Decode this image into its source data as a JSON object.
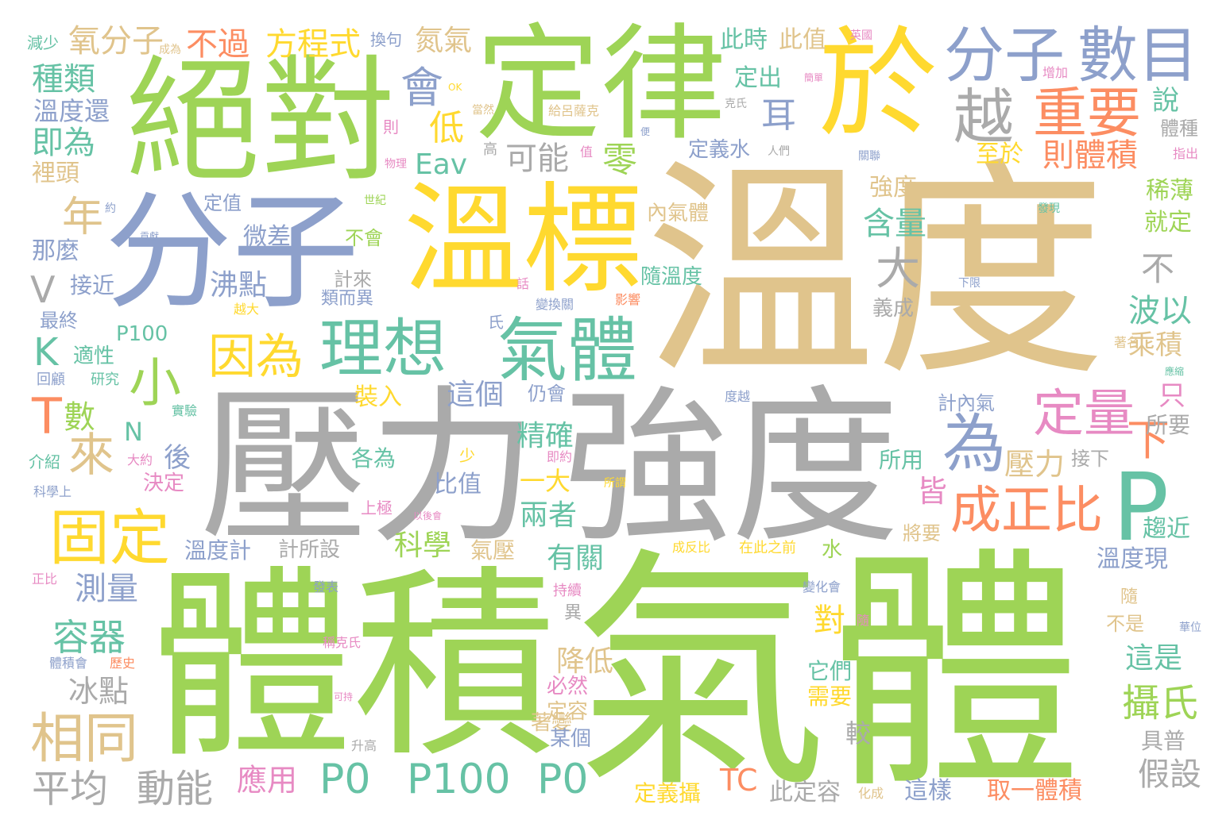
{
  "palette": {
    "green": "#9ed456",
    "tan": "#e0c48c",
    "gray": "#aaaaaa",
    "blue": "#8da0cb",
    "yellow": "#ffd92f",
    "teal": "#66c2a5",
    "orange": "#fc8d62",
    "pink": "#e78ac3"
  },
  "words": [
    {
      "text": "溫度",
      "color": "tan"
    },
    {
      "text": "氣體",
      "color": "green"
    },
    {
      "text": "體積",
      "color": "green"
    },
    {
      "text": "壓力",
      "color": "gray"
    },
    {
      "text": "強度",
      "color": "gray"
    },
    {
      "text": "絕對",
      "color": "green"
    },
    {
      "text": "定律",
      "color": "green"
    },
    {
      "text": "分子",
      "color": "blue"
    },
    {
      "text": "於",
      "color": "yellow"
    },
    {
      "text": "溫標",
      "color": "yellow"
    },
    {
      "text": "P",
      "color": "teal"
    },
    {
      "text": "分子",
      "color": "blue"
    },
    {
      "text": "數目",
      "color": "blue"
    },
    {
      "text": "理想",
      "color": "teal"
    },
    {
      "text": "氣體",
      "color": "teal"
    },
    {
      "text": "重要",
      "color": "orange"
    },
    {
      "text": "越",
      "color": "gray"
    },
    {
      "text": "因為",
      "color": "yellow"
    },
    {
      "text": "小",
      "color": "green"
    },
    {
      "text": "成正比",
      "color": "orange"
    },
    {
      "text": "定量",
      "color": "pink"
    },
    {
      "text": "為",
      "color": "blue"
    },
    {
      "text": "固定",
      "color": "yellow"
    },
    {
      "text": "相同",
      "color": "tan"
    },
    {
      "text": "P0",
      "color": "teal"
    },
    {
      "text": "P100",
      "color": "teal"
    },
    {
      "text": "P0",
      "color": "teal"
    },
    {
      "text": "平均",
      "color": "gray"
    },
    {
      "text": "動能",
      "color": "gray"
    },
    {
      "text": "方程式",
      "color": "yellow"
    },
    {
      "text": "氧分子",
      "color": "tan"
    },
    {
      "text": "不過",
      "color": "orange"
    },
    {
      "text": "氮氣",
      "color": "tan"
    },
    {
      "text": "會",
      "color": "blue"
    },
    {
      "text": "耳",
      "color": "blue"
    },
    {
      "text": "低",
      "color": "yellow"
    },
    {
      "text": "則體積",
      "color": "orange"
    },
    {
      "text": "可能",
      "color": "gray"
    },
    {
      "text": "零",
      "color": "green"
    },
    {
      "text": "Eav",
      "color": "teal"
    },
    {
      "text": "種類",
      "color": "teal"
    },
    {
      "text": "溫度還",
      "color": "blue"
    },
    {
      "text": "即為",
      "color": "teal"
    },
    {
      "text": "裡頭",
      "color": "tan"
    },
    {
      "text": "年",
      "color": "tan"
    },
    {
      "text": "來",
      "color": "tan"
    },
    {
      "text": "T",
      "color": "orange"
    },
    {
      "text": "數",
      "color": "green"
    },
    {
      "text": "K",
      "color": "teal"
    },
    {
      "text": "V",
      "color": "gray"
    },
    {
      "text": "容器",
      "color": "teal"
    },
    {
      "text": "測量",
      "color": "blue"
    },
    {
      "text": "冰點",
      "color": "gray"
    },
    {
      "text": "溫度計",
      "color": "blue"
    },
    {
      "text": "沸點",
      "color": "blue"
    },
    {
      "text": "微差",
      "color": "blue"
    },
    {
      "text": "接近",
      "color": "blue"
    },
    {
      "text": "那麼",
      "color": "blue"
    },
    {
      "text": "最終",
      "color": "blue"
    },
    {
      "text": "P100",
      "color": "teal"
    },
    {
      "text": "適性",
      "color": "teal"
    },
    {
      "text": "裝入",
      "color": "yellow"
    },
    {
      "text": "這個",
      "color": "blue"
    },
    {
      "text": "精確",
      "color": "teal"
    },
    {
      "text": "兩者",
      "color": "teal"
    },
    {
      "text": "一大",
      "color": "yellow"
    },
    {
      "text": "科學",
      "color": "green"
    },
    {
      "text": "氣壓",
      "color": "tan"
    },
    {
      "text": "有關",
      "color": "teal"
    },
    {
      "text": "降低",
      "color": "tan"
    },
    {
      "text": "必然",
      "color": "pink"
    },
    {
      "text": "定容",
      "color": "tan"
    },
    {
      "text": "著變",
      "color": "tan"
    },
    {
      "text": "某個",
      "color": "blue"
    },
    {
      "text": "應用",
      "color": "pink"
    },
    {
      "text": "TC",
      "color": "orange"
    },
    {
      "text": "此定容",
      "color": "gray"
    },
    {
      "text": "定義攝",
      "color": "yellow"
    },
    {
      "text": "這樣",
      "color": "blue"
    },
    {
      "text": "取一體積",
      "color": "orange"
    },
    {
      "text": "假設",
      "color": "gray"
    },
    {
      "text": "具普",
      "color": "gray"
    },
    {
      "text": "攝氏",
      "color": "green"
    },
    {
      "text": "這是",
      "color": "teal"
    },
    {
      "text": "溫度現",
      "color": "blue"
    },
    {
      "text": "趨近",
      "color": "teal"
    },
    {
      "text": "下",
      "color": "orange"
    },
    {
      "text": "壓力",
      "color": "tan"
    },
    {
      "text": "皆",
      "color": "pink"
    },
    {
      "text": "對",
      "color": "yellow"
    },
    {
      "text": "所用",
      "color": "teal"
    },
    {
      "text": "接下",
      "color": "gray"
    },
    {
      "text": "所要",
      "color": "gray"
    },
    {
      "text": "只",
      "color": "pink"
    },
    {
      "text": "乘積",
      "color": "tan"
    },
    {
      "text": "波以",
      "color": "teal"
    },
    {
      "text": "不",
      "color": "gray"
    },
    {
      "text": "大",
      "color": "gray"
    },
    {
      "text": "含量",
      "color": "teal"
    },
    {
      "text": "強度",
      "color": "tan"
    },
    {
      "text": "就定",
      "color": "green"
    },
    {
      "text": "稀薄",
      "color": "green"
    },
    {
      "text": "至於",
      "color": "yellow"
    },
    {
      "text": "說",
      "color": "teal"
    },
    {
      "text": "體種",
      "color": "gray"
    },
    {
      "text": "此時",
      "color": "teal"
    },
    {
      "text": "此值",
      "color": "tan"
    },
    {
      "text": "定出",
      "color": "teal"
    },
    {
      "text": "定義水",
      "color": "blue"
    },
    {
      "text": "內氣體",
      "color": "tan"
    },
    {
      "text": "隨溫度",
      "color": "teal"
    },
    {
      "text": "計內氣",
      "color": "blue"
    },
    {
      "text": "義成",
      "color": "gray"
    },
    {
      "text": "水",
      "color": "green"
    },
    {
      "text": "計所設",
      "color": "gray"
    },
    {
      "text": "後",
      "color": "blue"
    },
    {
      "text": "決定",
      "color": "pink"
    },
    {
      "text": "比值",
      "color": "blue"
    },
    {
      "text": "各為",
      "color": "teal"
    },
    {
      "text": "仍會",
      "color": "blue"
    },
    {
      "text": "定值",
      "color": "blue"
    },
    {
      "text": "不會",
      "color": "green"
    },
    {
      "text": "計來",
      "color": "gray"
    },
    {
      "text": "類而異",
      "color": "blue"
    },
    {
      "text": "N",
      "color": "teal"
    },
    {
      "text": "介紹",
      "color": "teal"
    },
    {
      "text": "科學上",
      "color": "blue"
    },
    {
      "text": "正比",
      "color": "pink"
    },
    {
      "text": "體積會",
      "color": "blue"
    },
    {
      "text": "歷史",
      "color": "orange"
    },
    {
      "text": "回顧",
      "color": "blue"
    },
    {
      "text": "研究",
      "color": "teal"
    },
    {
      "text": "實驗",
      "color": "teal"
    },
    {
      "text": "換句",
      "color": "blue"
    },
    {
      "text": "減少",
      "color": "teal"
    },
    {
      "text": "成為",
      "color": "tan"
    },
    {
      "text": "英國",
      "color": "pink"
    },
    {
      "text": "增加",
      "color": "pink"
    },
    {
      "text": "克氏",
      "color": "gray"
    },
    {
      "text": "隨",
      "color": "tan"
    },
    {
      "text": "不是",
      "color": "tan"
    },
    {
      "text": "將要",
      "color": "tan"
    },
    {
      "text": "隨",
      "color": "pink"
    },
    {
      "text": "指出",
      "color": "pink"
    },
    {
      "text": "應縮",
      "color": "teal"
    },
    {
      "text": "著名",
      "color": "tan"
    },
    {
      "text": "發現",
      "color": "teal"
    },
    {
      "text": "下限",
      "color": "blue"
    },
    {
      "text": "影響",
      "color": "orange"
    },
    {
      "text": "變換關",
      "color": "blue"
    },
    {
      "text": "世紀",
      "color": "green"
    },
    {
      "text": "貢獻",
      "color": "blue"
    },
    {
      "text": "物理",
      "color": "pink"
    },
    {
      "text": "給呂薩克",
      "color": "tan"
    },
    {
      "text": "人們",
      "color": "gray"
    },
    {
      "text": "關聯",
      "color": "blue"
    },
    {
      "text": "度越",
      "color": "blue"
    },
    {
      "text": "成反比",
      "color": "yellow"
    },
    {
      "text": "在此之前",
      "color": "yellow"
    },
    {
      "text": "上極",
      "color": "pink"
    },
    {
      "text": "所謂",
      "color": "yellow"
    },
    {
      "text": "以後會",
      "color": "pink"
    },
    {
      "text": "持續",
      "color": "pink"
    },
    {
      "text": "異",
      "color": "gray"
    },
    {
      "text": "變化會",
      "color": "blue"
    },
    {
      "text": "升高",
      "color": "gray"
    },
    {
      "text": "化成",
      "color": "tan"
    },
    {
      "text": "它們",
      "color": "teal"
    },
    {
      "text": "需要",
      "color": "yellow"
    },
    {
      "text": "較",
      "color": "gray"
    },
    {
      "text": "華位",
      "color": "blue"
    },
    {
      "text": "少",
      "color": "yellow"
    },
    {
      "text": "即約",
      "color": "pink"
    },
    {
      "text": "大約",
      "color": "pink"
    },
    {
      "text": "發表",
      "color": "blue"
    },
    {
      "text": "OK",
      "color": "yellow"
    },
    {
      "text": "當然",
      "color": "tan"
    },
    {
      "text": "簡單",
      "color": "pink"
    },
    {
      "text": "則",
      "color": "pink"
    },
    {
      "text": "高",
      "color": "gray"
    },
    {
      "text": "值",
      "color": "pink"
    },
    {
      "text": "便",
      "color": "blue"
    },
    {
      "text": "話",
      "color": "pink"
    },
    {
      "text": "氏",
      "color": "blue"
    },
    {
      "text": "越大",
      "color": "yellow"
    },
    {
      "text": "稱克氏",
      "color": "pink"
    },
    {
      "text": "可持",
      "color": "pink"
    },
    {
      "text": "約",
      "color": "blue"
    }
  ]
}
